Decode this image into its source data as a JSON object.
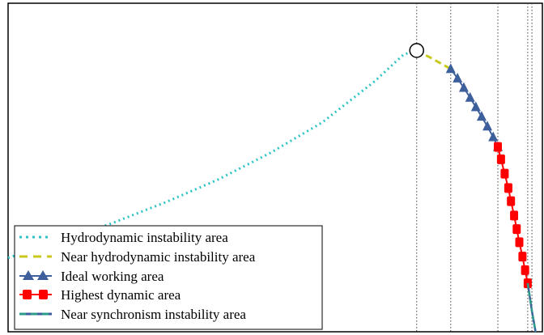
{
  "chart_data": {
    "type": "line",
    "title": "",
    "xlabel": "",
    "ylabel": "",
    "grid": "vertical dotted lines at zone boundaries",
    "legend_position": "bottom-left",
    "series": [
      {
        "name": "Hydrodynamic instability area",
        "style": "dash-dot",
        "color": "#2ec4c4",
        "points": [
          [
            0.0,
            0.18
          ],
          [
            0.1,
            0.22
          ],
          [
            0.2,
            0.265
          ],
          [
            0.3,
            0.315
          ],
          [
            0.4,
            0.37
          ],
          [
            0.5,
            0.435
          ],
          [
            0.6,
            0.51
          ],
          [
            0.7,
            0.61
          ],
          [
            0.755,
            0.675
          ],
          [
            0.78,
            0.685
          ]
        ]
      },
      {
        "name": "Near hydrodynamic instability area",
        "style": "dashed",
        "color": "#c8c81e",
        "points": [
          [
            0.78,
            0.685
          ],
          [
            0.81,
            0.665
          ],
          [
            0.845,
            0.64
          ]
        ]
      },
      {
        "name": "Ideal working area",
        "style": "triangle-markers",
        "color": "#3d5f9c",
        "points": [
          [
            0.845,
            0.64
          ],
          [
            0.858,
            0.617
          ],
          [
            0.87,
            0.594
          ],
          [
            0.882,
            0.57
          ],
          [
            0.893,
            0.547
          ],
          [
            0.904,
            0.524
          ],
          [
            0.915,
            0.5
          ],
          [
            0.926,
            0.474
          ],
          [
            0.935,
            0.45
          ]
        ]
      },
      {
        "name": "Highest dynamic area",
        "style": "square-markers",
        "color": "#ff0000",
        "points": [
          [
            0.935,
            0.45
          ],
          [
            0.941,
            0.42
          ],
          [
            0.948,
            0.385
          ],
          [
            0.955,
            0.35
          ],
          [
            0.96,
            0.318
          ],
          [
            0.966,
            0.283
          ],
          [
            0.971,
            0.25
          ],
          [
            0.976,
            0.218
          ],
          [
            0.982,
            0.183
          ],
          [
            0.987,
            0.15
          ],
          [
            0.992,
            0.118
          ]
        ]
      },
      {
        "name": "Near synchronism instability area",
        "style": "dashed",
        "color": "#2d9b8a",
        "points": [
          [
            0.992,
            0.118
          ],
          [
            1.0,
            0.05
          ],
          [
            1.007,
            0.0
          ]
        ]
      }
    ],
    "markers": [
      {
        "type": "open-circle",
        "at": [
          0.78,
          0.685
        ]
      }
    ],
    "boundaries_x": [
      0.78,
      0.845,
      0.935,
      0.992,
      1.0
    ],
    "xlim": [
      0.0,
      1.02
    ],
    "ylim": [
      0.0,
      0.8
    ]
  }
}
